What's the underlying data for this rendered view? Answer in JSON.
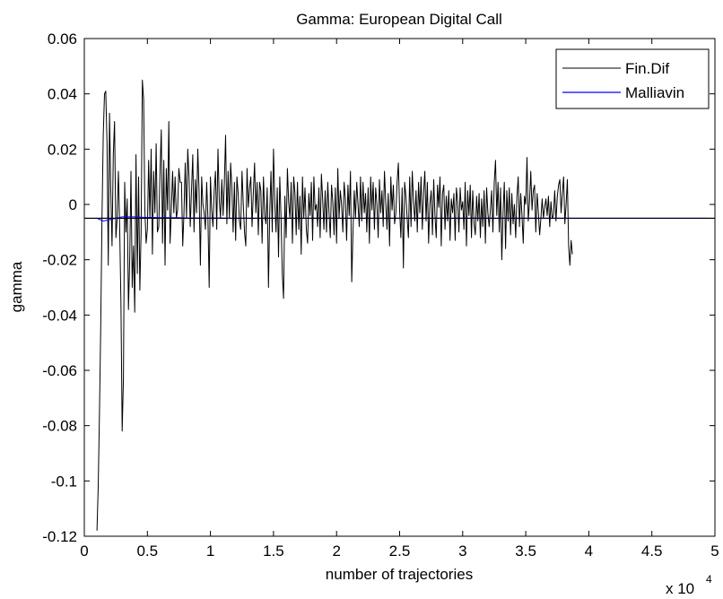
{
  "chart_data": {
    "type": "line",
    "title": "Gamma: European Digital Call",
    "xlabel": "number of trajectories",
    "ylabel": "gamma",
    "x_multiplier_label": "x 10",
    "x_multiplier_exponent": "4",
    "xlim": [
      0,
      50000
    ],
    "ylim": [
      -0.12,
      0.06
    ],
    "xticks": [
      0,
      5000,
      10000,
      15000,
      20000,
      25000,
      30000,
      35000,
      40000,
      45000,
      50000
    ],
    "xtick_labels": [
      "0",
      "0.5",
      "1",
      "1.5",
      "2",
      "2.5",
      "3",
      "3.5",
      "4",
      "4.5",
      "5"
    ],
    "yticks": [
      -0.12,
      -0.1,
      -0.08,
      -0.06,
      -0.04,
      -0.02,
      0,
      0.02,
      0.04,
      0.06
    ],
    "ytick_labels": [
      "-0.12",
      "-0.1",
      "-0.08",
      "-0.06",
      "-0.04",
      "-0.02",
      "0",
      "0.02",
      "0.04",
      "0.06"
    ],
    "grid": false,
    "legend_position": "top-right",
    "series": [
      {
        "name": "Fin.Dif",
        "color": "#000000",
        "x_start": 1000,
        "x_step": 100,
        "values": [
          -0.118,
          -0.102,
          -0.075,
          -0.044,
          -0.005,
          0.025,
          0.04,
          0.041,
          0.022,
          -0.022,
          0.033,
          0.005,
          -0.015,
          0.018,
          0.03,
          -0.012,
          -0.005,
          0.012,
          -0.008,
          -0.035,
          -0.082,
          -0.063,
          0.008,
          -0.01,
          0.002,
          -0.038,
          -0.02,
          0.012,
          -0.03,
          -0.015,
          -0.039,
          0.018,
          -0.025,
          0.01,
          -0.031,
          -0.01,
          0.045,
          0.038,
          -0.002,
          -0.014,
          -0.009,
          0.016,
          -0.005,
          0.02,
          -0.018,
          0.012,
          -0.003,
          0.022,
          -0.01,
          -0.008,
          0.012,
          0.027,
          -0.014,
          0.016,
          -0.022,
          0.013,
          -0.002,
          0.03,
          -0.014,
          -0.002,
          0.012,
          -0.003,
          0.01,
          -0.005,
          -0.002,
          0.013,
          0.008,
          0.008,
          -0.015,
          -0.003,
          0.015,
          -0.005,
          0.02,
          0.01,
          -0.008,
          0.005,
          0.018,
          -0.01,
          0.009,
          -0.003,
          0.02,
          0.005,
          -0.022,
          0.01,
          0.0,
          -0.003,
          -0.009,
          0.008,
          -0.005,
          -0.03,
          0.01,
          -0.002,
          -0.008,
          0.005,
          0.012,
          -0.009,
          0.02,
          0.002,
          -0.005,
          0.009,
          -0.004,
          0.008,
          0.025,
          -0.007,
          0.012,
          -0.005,
          0.015,
          0.006,
          -0.01,
          0.008,
          -0.013,
          0.01,
          0.004,
          -0.006,
          -0.009,
          0.012,
          0.0,
          -0.01,
          -0.015,
          0.013,
          -0.001,
          0.006,
          0.01,
          -0.008,
          0.004,
          0.015,
          -0.003,
          0.008,
          -0.011,
          0.008,
          0.005,
          -0.014,
          0.01,
          -0.004,
          -0.007,
          0.006,
          -0.03,
          -0.003,
          0.012,
          -0.01,
          0.02,
          0.001,
          -0.01,
          0.006,
          -0.019,
          0.01,
          -0.005,
          -0.025,
          -0.034,
          0.003,
          -0.012,
          0.013,
          0.001,
          -0.005,
          0.008,
          -0.014,
          0.01,
          0.004,
          -0.011,
          0.008,
          -0.009,
          0.003,
          -0.018,
          0.01,
          -0.005,
          0.006,
          -0.009,
          -0.014,
          0.004,
          -0.004,
          0.008,
          -0.013,
          0.01,
          -0.002,
          0.0,
          -0.008,
          0.006,
          -0.012,
          0.011,
          0.002,
          -0.009,
          0.005,
          -0.01,
          0.008,
          -0.003,
          -0.012,
          0.007,
          0.001,
          -0.011,
          0.006,
          -0.014,
          0.013,
          -0.005,
          0.005,
          0.0,
          -0.01,
          0.008,
          0.002,
          -0.013,
          0.007,
          -0.004,
          0.012,
          -0.028,
          -0.01,
          0.005,
          -0.005,
          0.008,
          0.0,
          -0.008,
          0.01,
          -0.006,
          0.008,
          -0.003,
          0.004,
          -0.01,
          0.006,
          -0.014,
          0.01,
          -0.002,
          0.008,
          -0.009,
          0.006,
          0.0,
          -0.012,
          0.009,
          -0.003,
          0.005,
          -0.008,
          0.012,
          0.001,
          -0.009,
          0.004,
          -0.015,
          0.01,
          -0.002,
          0.007,
          -0.007,
          -0.003,
          0.008,
          0.015,
          -0.002,
          -0.012,
          0.006,
          -0.023,
          0.008,
          0.003,
          -0.005,
          -0.012,
          0.01,
          -0.008,
          0.012,
          0.001,
          -0.006,
          0.005,
          -0.01,
          0.008,
          -0.003,
          0.01,
          -0.009,
          0.004,
          0.012,
          -0.006,
          0.008,
          -0.014,
          0.0,
          0.005,
          -0.011,
          0.009,
          -0.004,
          -0.012,
          0.007,
          -0.001,
          0.01,
          -0.015,
          0.004,
          0.007,
          -0.009,
          0.003,
          -0.006,
          0.005,
          -0.013,
          0.002,
          -0.003,
          0.004,
          -0.013,
          0.006,
          0.001,
          -0.01,
          0.006,
          -0.002,
          0.001,
          -0.009,
          0.008,
          -0.015,
          0.005,
          -0.004,
          0.007,
          -0.012,
          0.005,
          -0.007,
          -0.011,
          0.003,
          -0.006,
          0.004,
          -0.012,
          0.002,
          -0.008,
          0.005,
          -0.014,
          0.006,
          -0.003,
          -0.008,
          -0.002,
          0.005,
          -0.01,
          0.008,
          0.016,
          -0.004,
          0.008,
          -0.01,
          0.006,
          -0.02,
          -0.003,
          0.008,
          -0.016,
          0.005,
          -0.006,
          0.006,
          -0.011,
          0.004,
          -0.007,
          0.0,
          -0.012,
          0.003,
          0.01,
          -0.008,
          0.004,
          -0.004,
          -0.014,
          0.003,
          0.0,
          0.017,
          -0.006,
          0.001,
          0.012,
          -0.002,
          0.005,
          0.007,
          -0.01,
          0.004,
          -0.003,
          -0.011,
          -0.005,
          0.002,
          -0.005,
          -0.001,
          0.002,
          -0.004,
          0.003,
          -0.008,
          0.001,
          -0.005,
          -0.004,
          0.005,
          -0.006,
          0.003,
          0.007,
          0.009,
          -0.003,
          0.004,
          0.01,
          -0.007,
          0.0,
          0.009,
          -0.015,
          -0.022,
          -0.013,
          -0.018
        ],
        "peak_label": "Fin.Dif"
      },
      {
        "name": "Malliavin",
        "color": "#0000ff",
        "x_start": 1000,
        "x_step": 500,
        "values": [
          -0.005,
          -0.006,
          -0.0055,
          -0.005,
          -0.0045,
          -0.0045,
          -0.0045,
          -0.0046,
          -0.0047,
          -0.0047,
          -0.0048,
          -0.0048,
          -0.0048,
          -0.0048,
          -0.0049,
          -0.0049,
          -0.0049,
          -0.0049,
          -0.0049,
          -0.0049,
          -0.0049,
          -0.005,
          -0.005,
          -0.005,
          -0.005,
          -0.005,
          -0.005,
          -0.005,
          -0.005,
          -0.005,
          -0.005,
          -0.005,
          -0.005,
          -0.005,
          -0.005,
          -0.005,
          -0.005,
          -0.005,
          -0.005,
          -0.005,
          -0.005,
          -0.005,
          -0.005,
          -0.005,
          -0.005,
          -0.005,
          -0.005,
          -0.005,
          -0.005,
          -0.005,
          -0.005,
          -0.005,
          -0.005,
          -0.005,
          -0.005,
          -0.005,
          -0.005,
          -0.005,
          -0.005,
          -0.005,
          -0.005,
          -0.005,
          -0.005,
          -0.005,
          -0.005,
          -0.005,
          -0.005,
          -0.005,
          -0.005,
          -0.005,
          -0.005,
          -0.005,
          -0.005,
          -0.005,
          -0.005,
          -0.005,
          -0.005,
          -0.005,
          -0.005,
          -0.005,
          -0.005,
          -0.005,
          -0.005,
          -0.005,
          -0.005,
          -0.005,
          -0.005,
          -0.005,
          -0.005,
          -0.005,
          -0.005,
          -0.005,
          -0.005,
          -0.005,
          -0.005,
          -0.005,
          -0.005,
          -0.005
        ]
      }
    ],
    "reference_line": {
      "y": -0.005,
      "color": "#000000"
    }
  }
}
